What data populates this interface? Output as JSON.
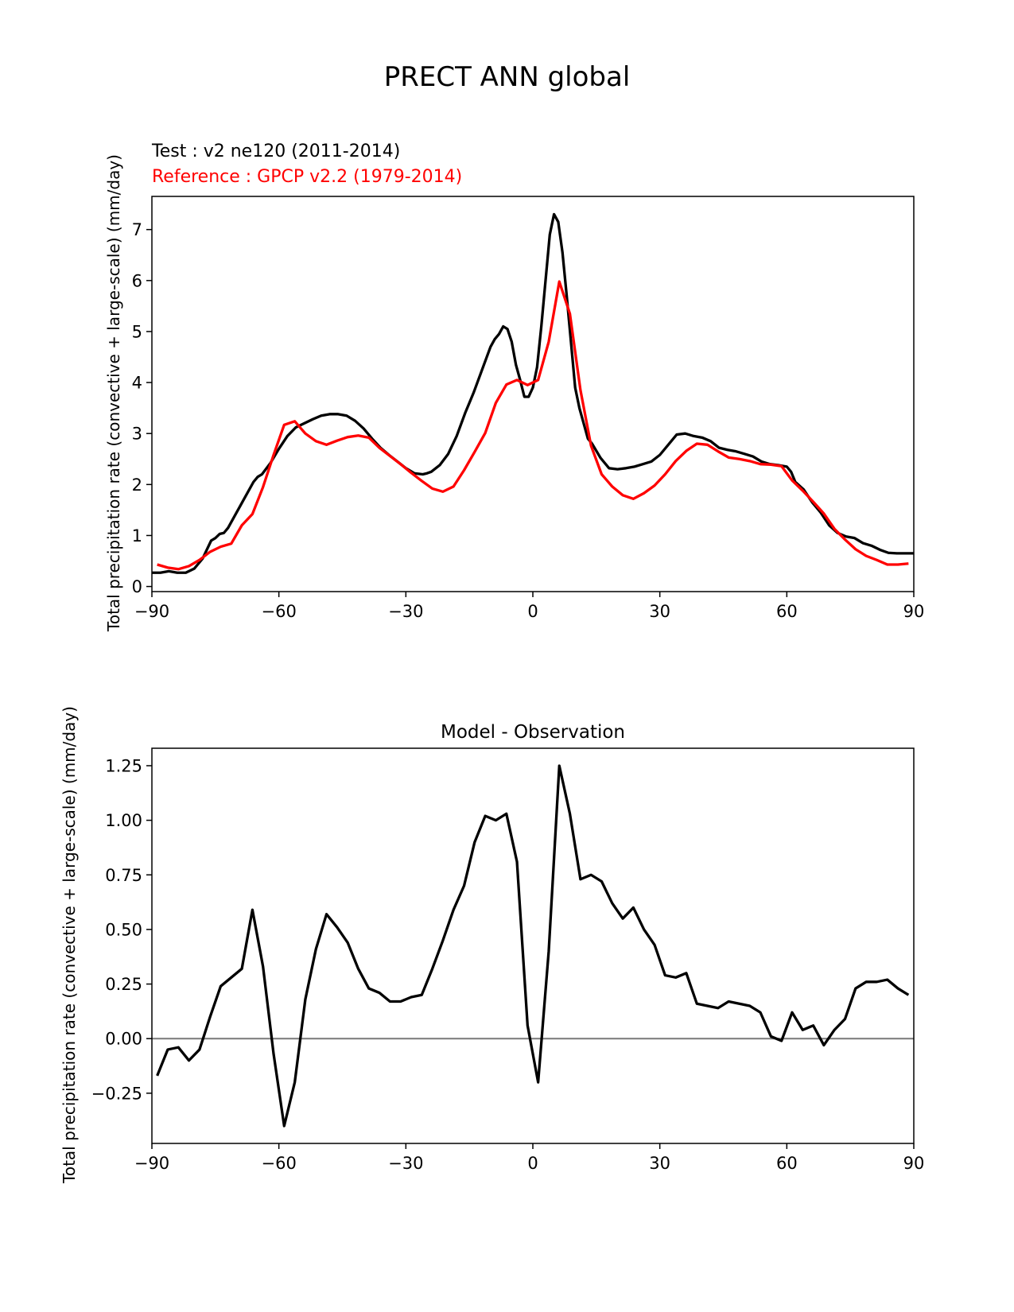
{
  "figure": {
    "title": "PRECT ANN global"
  },
  "chart_data": [
    {
      "type": "line",
      "test_label": "Test : v2 ne120 (2011-2014)",
      "reference_label": "Reference : GPCP v2.2 (1979-2014)",
      "ylabel": "Total precipitation rate (convective + large-scale) (mm/day)",
      "xlabel": "",
      "xlim": [
        -90,
        90
      ],
      "ylim": [
        -0.1,
        7.65
      ],
      "xticks": [
        -90,
        -60,
        -30,
        0,
        30,
        60,
        90
      ],
      "xtick_labels": [
        "−90",
        "−60",
        "−30",
        "0",
        "30",
        "60",
        "90"
      ],
      "yticks": [
        0,
        1,
        2,
        3,
        4,
        5,
        6,
        7
      ],
      "ytick_labels": [
        "0",
        "1",
        "2",
        "3",
        "4",
        "5",
        "6",
        "7"
      ],
      "grid": false,
      "series": [
        {
          "color": "#000000",
          "x": [
            -90,
            -88,
            -86,
            -84,
            -82,
            -80,
            -78,
            -76,
            -75,
            -74,
            -73,
            -72,
            -70,
            -68,
            -66,
            -65,
            -64,
            -62,
            -60,
            -58,
            -56,
            -54,
            -52,
            -50,
            -48,
            -46,
            -44,
            -42,
            -40,
            -38,
            -36,
            -34,
            -32,
            -30,
            -28,
            -26,
            -25,
            -24,
            -22,
            -20,
            -18,
            -16,
            -14,
            -12,
            -10,
            -9,
            -8,
            -7,
            -6,
            -5,
            -4,
            -3,
            -2,
            -1,
            0,
            1,
            2,
            3,
            4,
            5,
            6,
            7,
            8,
            9,
            10,
            11,
            12,
            13,
            14,
            16,
            18,
            20,
            22,
            24,
            26,
            28,
            30,
            32,
            34,
            36,
            38,
            40,
            42,
            44,
            46,
            48,
            50,
            52,
            54,
            56,
            58,
            60,
            61,
            62,
            64,
            66,
            68,
            70,
            72,
            74,
            76,
            78,
            80,
            82,
            84,
            86,
            88,
            90
          ],
          "values": [
            0.27,
            0.27,
            0.3,
            0.27,
            0.27,
            0.35,
            0.55,
            0.9,
            0.95,
            1.03,
            1.05,
            1.15,
            1.45,
            1.75,
            2.05,
            2.15,
            2.2,
            2.42,
            2.7,
            2.95,
            3.12,
            3.2,
            3.28,
            3.35,
            3.38,
            3.38,
            3.35,
            3.25,
            3.1,
            2.9,
            2.72,
            2.58,
            2.45,
            2.32,
            2.22,
            2.2,
            2.22,
            2.25,
            2.38,
            2.6,
            2.95,
            3.4,
            3.8,
            4.25,
            4.7,
            4.85,
            4.95,
            5.1,
            5.05,
            4.8,
            4.35,
            4.05,
            3.72,
            3.72,
            3.9,
            4.3,
            5.1,
            6.0,
            6.9,
            7.3,
            7.15,
            6.55,
            5.7,
            4.8,
            3.9,
            3.5,
            3.2,
            2.9,
            2.8,
            2.52,
            2.32,
            2.3,
            2.32,
            2.35,
            2.4,
            2.45,
            2.58,
            2.78,
            2.98,
            3.0,
            2.95,
            2.92,
            2.85,
            2.72,
            2.68,
            2.65,
            2.6,
            2.55,
            2.45,
            2.4,
            2.38,
            2.35,
            2.25,
            2.05,
            1.9,
            1.65,
            1.45,
            1.2,
            1.05,
            0.98,
            0.95,
            0.85,
            0.8,
            0.72,
            0.66,
            0.65,
            0.65,
            0.65
          ]
        },
        {
          "color": "#ff0000",
          "x": [
            -88.75,
            -86.25,
            -83.75,
            -81.25,
            -78.75,
            -76.25,
            -73.75,
            -71.25,
            -68.75,
            -66.25,
            -63.75,
            -61.25,
            -58.75,
            -56.25,
            -53.75,
            -51.25,
            -48.75,
            -46.25,
            -43.75,
            -41.25,
            -38.75,
            -36.25,
            -33.75,
            -31.25,
            -28.75,
            -26.25,
            -23.75,
            -21.25,
            -18.75,
            -16.25,
            -13.75,
            -11.25,
            -8.75,
            -6.25,
            -3.75,
            -1.25,
            1.25,
            3.75,
            6.25,
            8.75,
            11.25,
            13.75,
            16.25,
            18.75,
            21.25,
            23.75,
            26.25,
            28.75,
            31.25,
            33.75,
            36.25,
            38.75,
            41.25,
            43.75,
            46.25,
            48.75,
            51.25,
            53.75,
            56.25,
            58.75,
            61.25,
            63.75,
            66.25,
            68.75,
            71.25,
            73.75,
            76.25,
            78.75,
            81.25,
            83.75,
            86.25,
            88.75
          ],
          "values": [
            0.43,
            0.37,
            0.34,
            0.4,
            0.52,
            0.68,
            0.78,
            0.84,
            1.2,
            1.42,
            1.95,
            2.58,
            3.17,
            3.24,
            3.0,
            2.85,
            2.78,
            2.86,
            2.93,
            2.96,
            2.92,
            2.72,
            2.56,
            2.4,
            2.23,
            2.07,
            1.92,
            1.86,
            1.96,
            2.28,
            2.64,
            3.01,
            3.6,
            3.96,
            4.05,
            3.95,
            4.05,
            4.8,
            5.98,
            5.35,
            3.85,
            2.76,
            2.2,
            1.96,
            1.79,
            1.72,
            1.83,
            1.98,
            2.2,
            2.46,
            2.66,
            2.8,
            2.78,
            2.65,
            2.53,
            2.5,
            2.46,
            2.4,
            2.39,
            2.36,
            2.08,
            1.88,
            1.66,
            1.43,
            1.13,
            0.92,
            0.73,
            0.6,
            0.52,
            0.43,
            0.43,
            0.45
          ]
        }
      ]
    },
    {
      "type": "line",
      "title": "Model - Observation",
      "ylabel": "Total precipitation rate (convective + large-scale) (mm/day)",
      "xlabel": "",
      "xlim": [
        -90,
        90
      ],
      "ylim": [
        -0.48,
        1.33
      ],
      "xticks": [
        -90,
        -60,
        -30,
        0,
        30,
        60,
        90
      ],
      "xtick_labels": [
        "−90",
        "−60",
        "−30",
        "0",
        "30",
        "60",
        "90"
      ],
      "yticks": [
        -0.25,
        0,
        0.25,
        0.5,
        0.75,
        1.0,
        1.25
      ],
      "ytick_labels": [
        "−0.25",
        "0.00",
        "0.25",
        "0.50",
        "0.75",
        "1.00",
        "1.25"
      ],
      "zero_line": 0,
      "grid": false,
      "series": [
        {
          "color": "#000000",
          "x": [
            -88.75,
            -86.25,
            -83.75,
            -81.25,
            -78.75,
            -76.25,
            -73.75,
            -71.25,
            -68.75,
            -66.25,
            -63.75,
            -61.25,
            -58.75,
            -56.25,
            -53.75,
            -51.25,
            -48.75,
            -46.25,
            -43.75,
            -41.25,
            -38.75,
            -36.25,
            -33.75,
            -31.25,
            -28.75,
            -26.25,
            -23.75,
            -21.25,
            -18.75,
            -16.25,
            -13.75,
            -11.25,
            -8.75,
            -6.25,
            -3.75,
            -1.25,
            1.25,
            3.75,
            6.25,
            8.75,
            11.25,
            13.75,
            16.25,
            18.75,
            21.25,
            23.75,
            26.25,
            28.75,
            31.25,
            33.75,
            36.25,
            38.75,
            41.25,
            43.75,
            46.25,
            48.75,
            51.25,
            53.75,
            56.25,
            58.75,
            61.25,
            63.75,
            66.25,
            68.75,
            71.25,
            73.75,
            76.25,
            78.75,
            81.25,
            83.75,
            86.25,
            88.75
          ],
          "values": [
            -0.17,
            -0.05,
            -0.04,
            -0.1,
            -0.05,
            0.1,
            0.24,
            0.28,
            0.32,
            0.59,
            0.33,
            -0.07,
            -0.4,
            -0.2,
            0.18,
            0.41,
            0.57,
            0.51,
            0.44,
            0.32,
            0.23,
            0.21,
            0.17,
            0.17,
            0.19,
            0.2,
            0.32,
            0.45,
            0.59,
            0.7,
            0.9,
            1.02,
            1.0,
            1.03,
            0.81,
            0.06,
            -0.2,
            0.4,
            1.25,
            1.03,
            0.73,
            0.75,
            0.72,
            0.62,
            0.55,
            0.6,
            0.5,
            0.43,
            0.29,
            0.28,
            0.3,
            0.16,
            0.15,
            0.14,
            0.17,
            0.16,
            0.15,
            0.12,
            0.01,
            -0.01,
            0.12,
            0.04,
            0.06,
            -0.03,
            0.04,
            0.09,
            0.23,
            0.26,
            0.26,
            0.27,
            0.23,
            0.2
          ]
        }
      ]
    }
  ]
}
